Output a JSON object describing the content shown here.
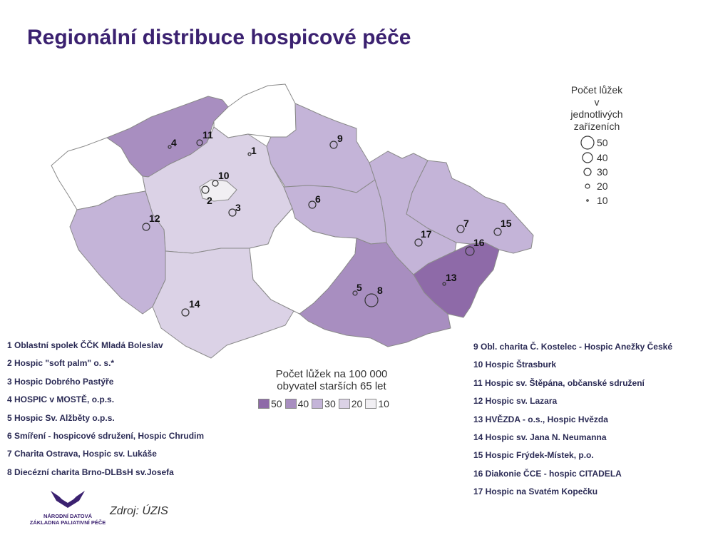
{
  "title": "Regionální distribuce hospicové péče",
  "size_legend": {
    "title_lines": [
      "Počet lůžek",
      "v",
      "jednotlivých",
      "zařízeních"
    ],
    "values": [
      "50",
      "40",
      "30",
      "20",
      "10"
    ]
  },
  "density_legend": {
    "title_lines": [
      "Počet lůžek na 100 000",
      "obyvatel starších 65 let"
    ],
    "classes": [
      {
        "label": "50",
        "color": "#8e6aa8"
      },
      {
        "label": "40",
        "color": "#a88ec0"
      },
      {
        "label": "30",
        "color": "#c4b4d8"
      },
      {
        "label": "20",
        "color": "#dbd2e6"
      },
      {
        "label": "10",
        "color": "#f1eff3"
      }
    ]
  },
  "markers": [
    "1",
    "2",
    "3",
    "4",
    "5",
    "6",
    "7",
    "8",
    "9",
    "10",
    "11",
    "12",
    "13",
    "14",
    "15",
    "16",
    "17"
  ],
  "hospices_left": [
    "1 Oblastní spolek ČČK Mladá Boleslav",
    "2 Hospic \"soft palm\" o. s.*",
    "3 Hospic Dobrého Pastýře",
    "4 HOSPIC v MOSTĚ, o.p.s.",
    "5 Hospic Sv. Alžběty o.p.s.",
    "6 Smíření - hospicové sdružení, Hospic Chrudim",
    "7 Charita Ostrava, Hospic sv. Lukáše",
    "8 Diecézní charita Brno-DLBsH sv.Josefa"
  ],
  "hospices_right": [
    "9 Obl. charita Č. Kostelec - Hospic Anežky České",
    "10 Hospic Štrasburk",
    "11 Hospic sv. Štěpána, občanské sdružení",
    "12 Hospic sv. Lazara",
    "13 HVĚZDA - o.s., Hospic Hvězda",
    "14 Hospic sv. Jana N. Neumanna",
    "15 Hospic Frýdek-Místek, p.o.",
    "16 Diakonie ČCE - hospic CITADELA",
    "17 Hospic na Svatém Kopečku"
  ],
  "logo": {
    "line1": "NÁRODNÍ DATOVÁ",
    "line2": "ZÁKLADNA PALIATIVNÍ PÉČE"
  },
  "source": "Zdroj: ÚZIS"
}
